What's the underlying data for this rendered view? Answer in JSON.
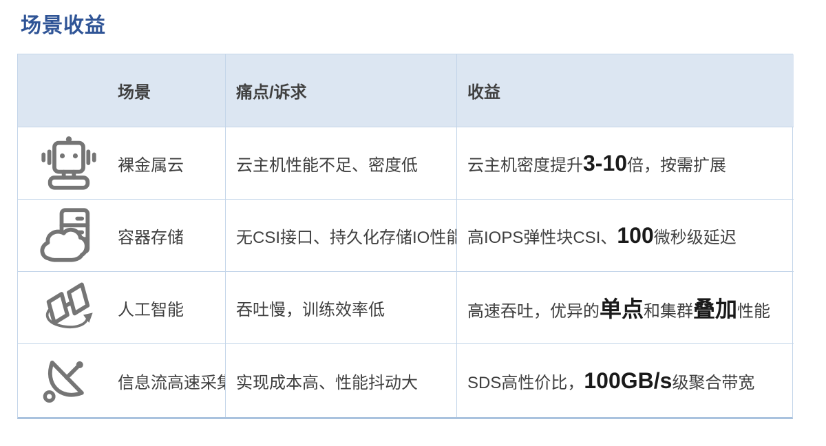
{
  "page_title": "场景收益",
  "colors": {
    "title": "#2F5496",
    "header_bg": "#DCE6F2",
    "border": "#C3D5E9",
    "icon": "#757575",
    "text": "#3F3F3F",
    "emphasis": "#1A1A1A"
  },
  "table": {
    "headers": [
      "场景",
      "痛点/诉求",
      "收益"
    ],
    "rows": [
      {
        "icon": "robot-icon",
        "scenario": "裸金属云",
        "pain": "云主机性能不足、密度低",
        "benefit": [
          {
            "text": "云主机密度提升",
            "bold": false
          },
          {
            "text": "3-10",
            "bold": true
          },
          {
            "text": "倍，按需扩展",
            "bold": false
          }
        ]
      },
      {
        "icon": "cloud-server-icon",
        "scenario": "容器存储",
        "pain": "无CSI接口、持久化存储IO性能低",
        "benefit": [
          {
            "text": "高IOPS弹性块CSI、",
            "bold": false
          },
          {
            "text": "100",
            "bold": true
          },
          {
            "text": "微秒级延迟",
            "bold": false
          }
        ]
      },
      {
        "icon": "ai-sync-icon",
        "scenario": "人工智能",
        "pain": "吞吐慢，训练效率低",
        "benefit": [
          {
            "text": "高速吞吐，优异的",
            "bold": false
          },
          {
            "text": "单点",
            "bold": true
          },
          {
            "text": "和集群",
            "bold": false
          },
          {
            "text": "叠加",
            "bold": true
          },
          {
            "text": "性能",
            "bold": false
          }
        ]
      },
      {
        "icon": "satellite-dish-icon",
        "scenario": "信息流高速采集",
        "pain": "实现成本高、性能抖动大",
        "benefit": [
          {
            "text": "SDS高性价比，",
            "bold": false
          },
          {
            "text": "100GB/s",
            "bold": true
          },
          {
            "text": "级聚合带宽",
            "bold": false
          }
        ]
      }
    ]
  }
}
